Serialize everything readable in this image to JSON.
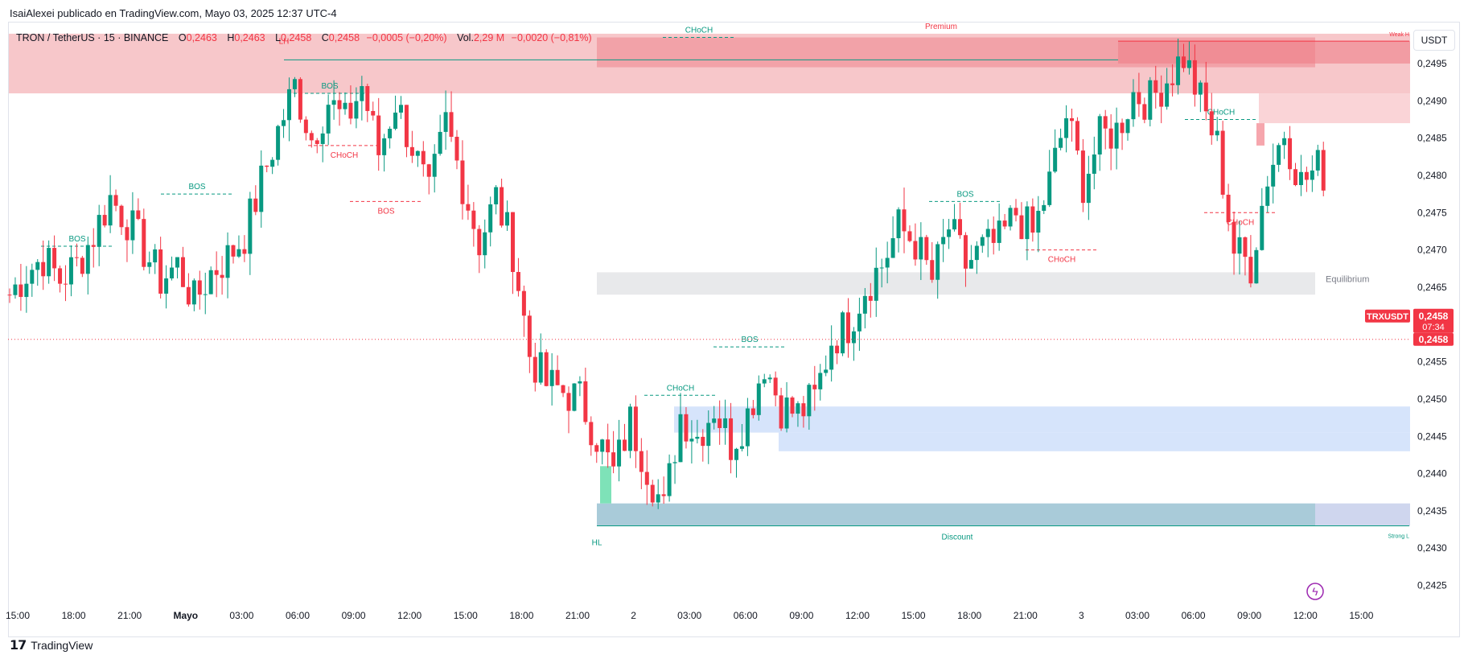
{
  "header": {
    "text": "IsaiAlexei publicado en TradingView.com, Mayo 03, 2025 12:37 UTC-4"
  },
  "legend": {
    "symbol": "TRON / TetherUS · 15 · BINANCE",
    "open_label": "O",
    "open": "0,2463",
    "high_label": "H",
    "high": "0,2463",
    "low_label": "L",
    "low": "0,2458",
    "close_label": "C",
    "close": "0,2458",
    "change": "−0,0005 (−0,20%)",
    "vol_label": "Vol.",
    "vol": "2,29 M",
    "vol_change": "−0,0020 (−0,81%)"
  },
  "currency_button": "USDT",
  "footer": {
    "brand": "TradingView"
  },
  "colors": {
    "up": "#089981",
    "down": "#f23645",
    "premium_zone": "#f6c1c4",
    "discount_zone": "#a9cbd9",
    "equilibrium_zone": "#e8e9eb",
    "bullish_ob": "#d6e4fb"
  },
  "chart_data": {
    "type": "candlestick",
    "y_axis": {
      "ylim": [
        0.24215,
        0.25005
      ],
      "ticks": [
        "0,2500",
        "0,2495",
        "0,2490",
        "0,2485",
        "0,2480",
        "0,2475",
        "0,2470",
        "0,2465",
        "0,2460",
        "0,2455",
        "0,2450",
        "0,2445",
        "0,2440",
        "0,2435",
        "0,2430",
        "0,2425"
      ]
    },
    "x_axis": {
      "ticks": [
        "15:00",
        "18:00",
        "21:00",
        "Mayo",
        "03:00",
        "06:00",
        "09:00",
        "12:00",
        "15:00",
        "18:00",
        "21:00",
        "2",
        "03:00",
        "06:00",
        "09:00",
        "12:00",
        "15:00",
        "18:00",
        "21:00",
        "3",
        "03:00",
        "06:00",
        "09:00",
        "12:00",
        "15:00"
      ]
    },
    "price_labels": {
      "symbol": "TRXUSDT",
      "price": "0,2458",
      "countdown": "07:34",
      "last": "0,2458"
    },
    "anchors": [
      0.2464,
      0.2467,
      0.2469,
      0.2466,
      0.2468,
      0.2472,
      0.2477,
      0.2474,
      0.247,
      0.2466,
      0.2468,
      0.2463,
      0.2467,
      0.2469,
      0.2472,
      0.2479,
      0.2486,
      0.2492,
      0.2485,
      0.249,
      0.2487,
      0.2492,
      0.2483,
      0.249,
      0.2484,
      0.2477,
      0.2487,
      0.2479,
      0.2471,
      0.2477,
      0.247,
      0.2456,
      0.2452,
      0.2451,
      0.245,
      0.2445,
      0.244,
      0.2447,
      0.2441,
      0.2435,
      0.2448,
      0.2445,
      0.2449,
      0.2444,
      0.2448,
      0.2455,
      0.2449,
      0.2448,
      0.245,
      0.2458,
      0.246,
      0.2465,
      0.2468,
      0.2473,
      0.2471,
      0.2466,
      0.2473,
      0.2468,
      0.247,
      0.2471,
      0.2475,
      0.2472,
      0.2479,
      0.2488,
      0.2479,
      0.2485,
      0.2486,
      0.2491,
      0.249,
      0.2493,
      0.2496,
      0.249,
      0.2484,
      0.247,
      0.2468,
      0.248,
      0.2486,
      0.2479,
      0.2481,
      0.2479,
      0.2482,
      0.2491,
      0.2483,
      0.248,
      0.2475,
      0.247,
      0.2464,
      0.2456,
      0.2458
    ],
    "close": 0.2458,
    "zones": [
      {
        "name": "Premium",
        "from": 0.2491,
        "to": 0.2499
      },
      {
        "name": "Equilibrium",
        "from": 0.2464,
        "to": 0.2467
      },
      {
        "name": "Discount",
        "from": 0.2433,
        "to": 0.2436
      },
      {
        "name": "Weak High",
        "label": "Weak H",
        "at": 0.2498
      },
      {
        "name": "Strong Low",
        "label": "Strong L",
        "at": 0.2433
      }
    ],
    "structure_labels": [
      {
        "text": "LH",
        "kind": "down"
      },
      {
        "text": "BOS",
        "kind": "up"
      },
      {
        "text": "BOS",
        "kind": "up"
      },
      {
        "text": "BOS",
        "kind": "up"
      },
      {
        "text": "CHoCH",
        "kind": "down"
      },
      {
        "text": "BOS",
        "kind": "down"
      },
      {
        "text": "CHoCH",
        "kind": "up"
      },
      {
        "text": "HL",
        "kind": "up"
      },
      {
        "text": "CHoCH",
        "kind": "up"
      },
      {
        "text": "BOS",
        "kind": "up"
      },
      {
        "text": "BOS",
        "kind": "up"
      },
      {
        "text": "CHoCH",
        "kind": "down"
      },
      {
        "text": "CHoCH",
        "kind": "up"
      },
      {
        "text": "CHoCH",
        "kind": "down"
      }
    ]
  }
}
